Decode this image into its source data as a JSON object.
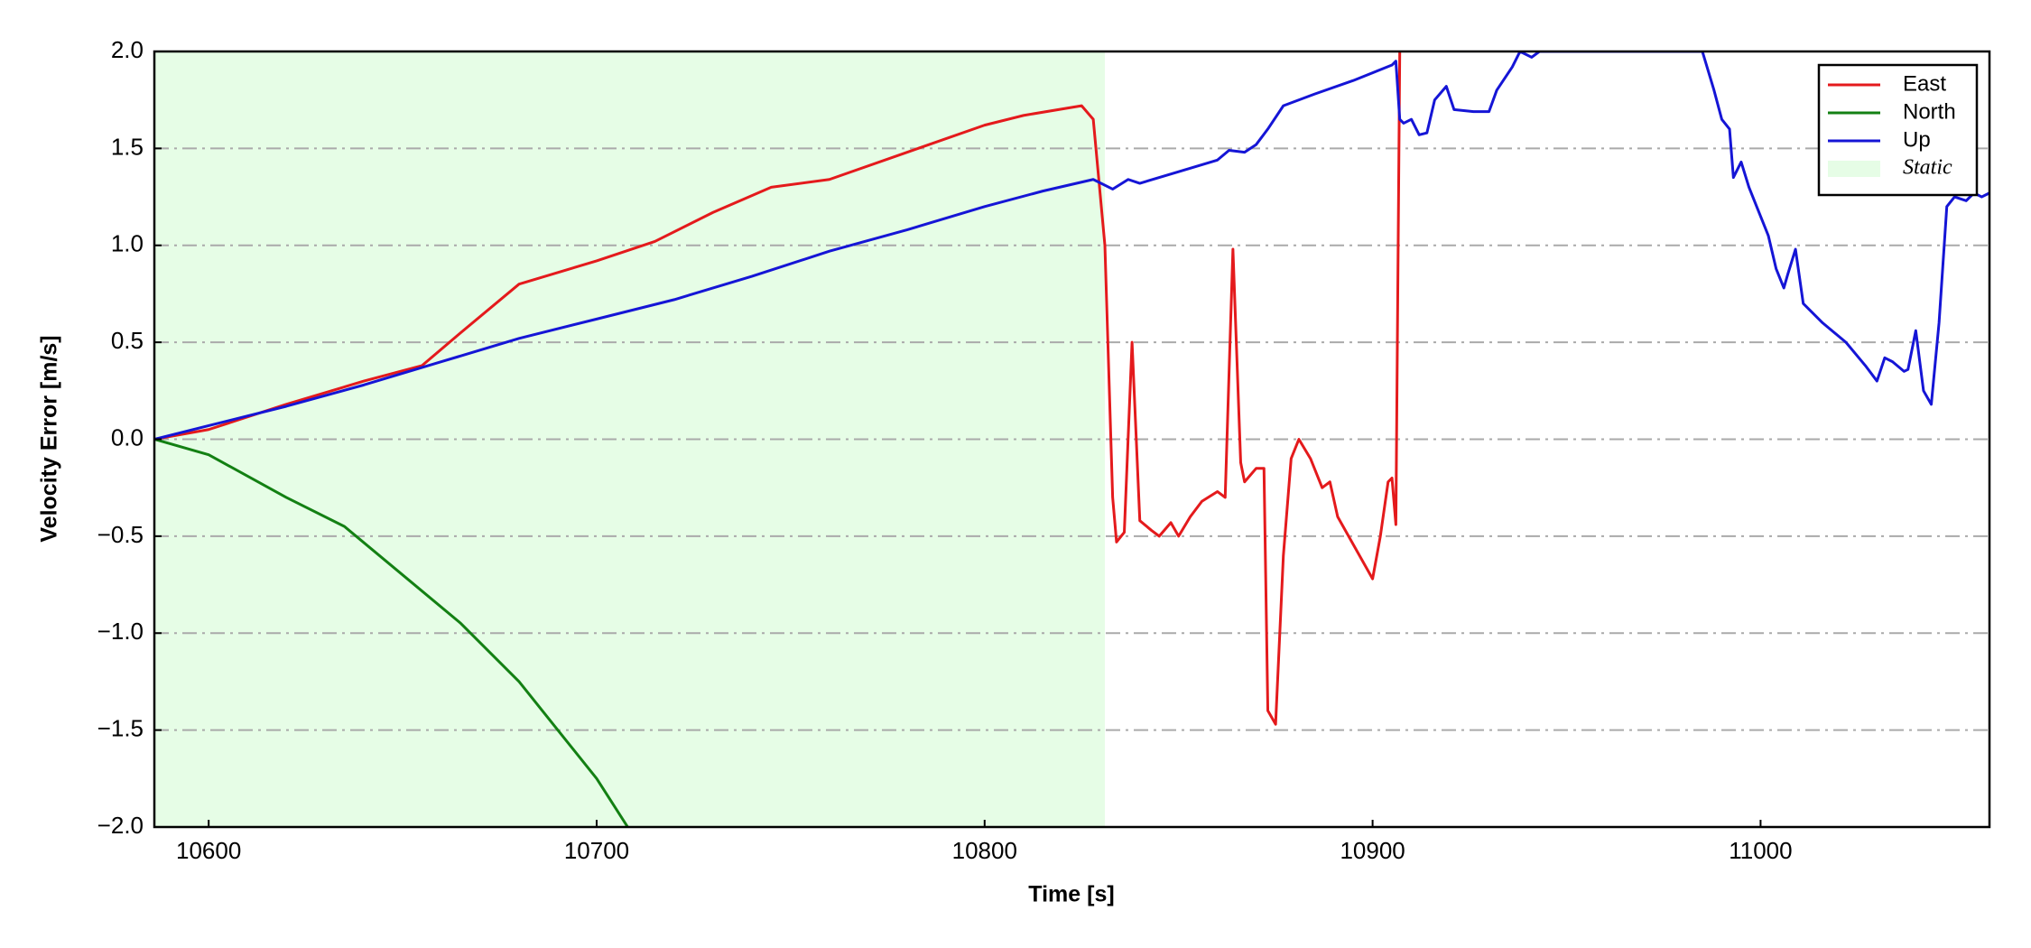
{
  "chart_data": {
    "type": "line",
    "xlabel": "Time [s]",
    "ylabel": "Velocity Error [m/s]",
    "xlim": [
      10586,
      11059
    ],
    "ylim": [
      -2,
      2
    ],
    "xticks": [
      10600,
      10700,
      10800,
      10900,
      11000
    ],
    "yticks": [
      {
        "value": 2,
        "label": "2.0"
      },
      {
        "value": 1.5,
        "label": "1.5"
      },
      {
        "value": 1,
        "label": "1.0"
      },
      {
        "value": 0.5,
        "label": "0.5"
      },
      {
        "value": 0,
        "label": "0.0"
      },
      {
        "value": -0.5,
        "label": "−0.5"
      },
      {
        "value": -1,
        "label": "−1.0"
      },
      {
        "value": -1.5,
        "label": "−1.5"
      },
      {
        "value": -2,
        "label": "−2.0"
      }
    ],
    "grid": true,
    "legend": "upper right",
    "span": {
      "name": "Static",
      "xlim": [
        10586,
        10831
      ],
      "color": "#e6fde6"
    },
    "series": [
      {
        "name": "East",
        "color": "#e41a1c",
        "x": [
          10586,
          10600,
          10620,
          10640,
          10655,
          10665,
          10680,
          10700,
          10715,
          10730,
          10745,
          10760,
          10780,
          10800,
          10810,
          10825,
          10828,
          10831,
          10833,
          10834,
          10836,
          10838,
          10840,
          10843,
          10845,
          10848,
          10850,
          10853,
          10856,
          10860,
          10862,
          10864,
          10866,
          10867,
          10870,
          10872,
          10873,
          10875,
          10877,
          10879,
          10881,
          10884,
          10887,
          10889,
          10891,
          10900,
          10902,
          10904,
          10905,
          10906,
          10907
        ],
        "values": [
          0,
          0.05,
          0.18,
          0.3,
          0.38,
          0.55,
          0.8,
          0.92,
          1.02,
          1.17,
          1.3,
          1.34,
          1.48,
          1.62,
          1.67,
          1.72,
          1.65,
          1.0,
          -0.3,
          -0.53,
          -0.48,
          0.5,
          -0.42,
          -0.47,
          -0.5,
          -0.43,
          -0.5,
          -0.4,
          -0.32,
          -0.27,
          -0.3,
          0.98,
          -0.12,
          -0.22,
          -0.15,
          -0.15,
          -1.4,
          -1.47,
          -0.6,
          -0.1,
          0.0,
          -0.1,
          -0.25,
          -0.22,
          -0.4,
          -0.72,
          -0.5,
          -0.22,
          -0.2,
          -0.44,
          2.0
        ]
      },
      {
        "name": "North",
        "color": "#138013",
        "x": [
          10586,
          10600,
          10620,
          10635,
          10650,
          10665,
          10680,
          10690,
          10700,
          10708
        ],
        "values": [
          0,
          -0.08,
          -0.3,
          -0.45,
          -0.7,
          -0.95,
          -1.25,
          -1.5,
          -1.75,
          -2.0
        ]
      },
      {
        "name": "Up",
        "color": "#1515d6",
        "x": [
          10586,
          10600,
          10620,
          10640,
          10660,
          10680,
          10700,
          10720,
          10740,
          10760,
          10780,
          10800,
          10815,
          10828,
          10833,
          10837,
          10840,
          10850,
          10860,
          10863,
          10867,
          10870,
          10873,
          10877,
          10885,
          10895,
          10905,
          10906,
          10907,
          10908,
          10910,
          10912,
          10914,
          10916,
          10919,
          10921,
          10926,
          10930,
          10932,
          10936,
          10938,
          10941,
          10943,
          10985,
          10988,
          10990,
          10992,
          10993,
          10995,
          10997,
          10999,
          11002,
          11004,
          11006,
          11007,
          11009,
          11011,
          11016,
          11022,
          11027,
          11030,
          11032,
          11034,
          11037,
          11038,
          11040,
          11042,
          11044,
          11046,
          11048,
          11050,
          11053,
          11055,
          11057,
          11059
        ],
        "values": [
          0,
          0.07,
          0.17,
          0.28,
          0.4,
          0.52,
          0.62,
          0.72,
          0.84,
          0.97,
          1.08,
          1.2,
          1.28,
          1.34,
          1.29,
          1.34,
          1.32,
          1.38,
          1.44,
          1.49,
          1.48,
          1.52,
          1.6,
          1.72,
          1.78,
          1.85,
          1.93,
          1.95,
          1.65,
          1.63,
          1.65,
          1.57,
          1.58,
          1.75,
          1.82,
          1.7,
          1.69,
          1.69,
          1.8,
          1.92,
          2.0,
          1.97,
          2.0,
          2.0,
          1.8,
          1.65,
          1.6,
          1.35,
          1.43,
          1.3,
          1.2,
          1.05,
          0.88,
          0.78,
          0.85,
          0.98,
          0.7,
          0.6,
          0.5,
          0.38,
          0.3,
          0.42,
          0.4,
          0.35,
          0.36,
          0.56,
          0.25,
          0.18,
          0.6,
          1.2,
          1.25,
          1.23,
          1.27,
          1.25,
          1.27
        ]
      }
    ]
  }
}
